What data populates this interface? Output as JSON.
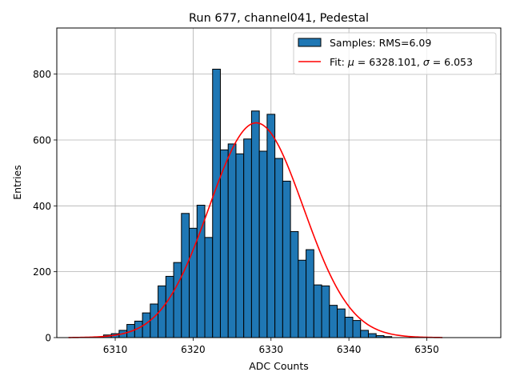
{
  "chart_data": {
    "type": "bar",
    "title": "Run 677, channel041, Pedestal",
    "xlabel": "ADC Counts",
    "ylabel": "Entries",
    "xlim": [
      6302.5,
      6359.5
    ],
    "ylim": [
      0,
      940
    ],
    "grid": true,
    "legend_position": "top-right",
    "x_ticks": [
      6310,
      6320,
      6330,
      6340,
      6350
    ],
    "y_ticks": [
      0,
      200,
      400,
      600,
      800
    ],
    "bin_width": 1,
    "bins": [
      {
        "x": 6309,
        "y": 8
      },
      {
        "x": 6310,
        "y": 12
      },
      {
        "x": 6311,
        "y": 22
      },
      {
        "x": 6312,
        "y": 40
      },
      {
        "x": 6313,
        "y": 50
      },
      {
        "x": 6314,
        "y": 75
      },
      {
        "x": 6315,
        "y": 102
      },
      {
        "x": 6316,
        "y": 157
      },
      {
        "x": 6317,
        "y": 186
      },
      {
        "x": 6318,
        "y": 228
      },
      {
        "x": 6319,
        "y": 377
      },
      {
        "x": 6320,
        "y": 332
      },
      {
        "x": 6321,
        "y": 402
      },
      {
        "x": 6322,
        "y": 304
      },
      {
        "x": 6323,
        "y": 815
      },
      {
        "x": 6324,
        "y": 570
      },
      {
        "x": 6325,
        "y": 588
      },
      {
        "x": 6326,
        "y": 558
      },
      {
        "x": 6327,
        "y": 603
      },
      {
        "x": 6328,
        "y": 688
      },
      {
        "x": 6329,
        "y": 566
      },
      {
        "x": 6330,
        "y": 678
      },
      {
        "x": 6331,
        "y": 544
      },
      {
        "x": 6332,
        "y": 475
      },
      {
        "x": 6333,
        "y": 322
      },
      {
        "x": 6334,
        "y": 235
      },
      {
        "x": 6335,
        "y": 267
      },
      {
        "x": 6336,
        "y": 160
      },
      {
        "x": 6337,
        "y": 157
      },
      {
        "x": 6338,
        "y": 98
      },
      {
        "x": 6339,
        "y": 87
      },
      {
        "x": 6340,
        "y": 62
      },
      {
        "x": 6341,
        "y": 52
      },
      {
        "x": 6342,
        "y": 22
      },
      {
        "x": 6343,
        "y": 12
      },
      {
        "x": 6344,
        "y": 6
      },
      {
        "x": 6345,
        "y": 3
      }
    ],
    "fit": {
      "mu": 6328.101,
      "sigma": 6.053,
      "amplitude": 652,
      "x_range": [
        6304,
        6352
      ]
    },
    "bar_color": "#1f77b4",
    "fit_color": "#ff0000",
    "series": [
      {
        "name": "Samples: RMS=6.09",
        "type": "histogram"
      },
      {
        "name_parts": [
          "Fit: ",
          "μ",
          " = 6328.101, ",
          "σ",
          " = 6.053"
        ],
        "type": "line"
      }
    ]
  }
}
